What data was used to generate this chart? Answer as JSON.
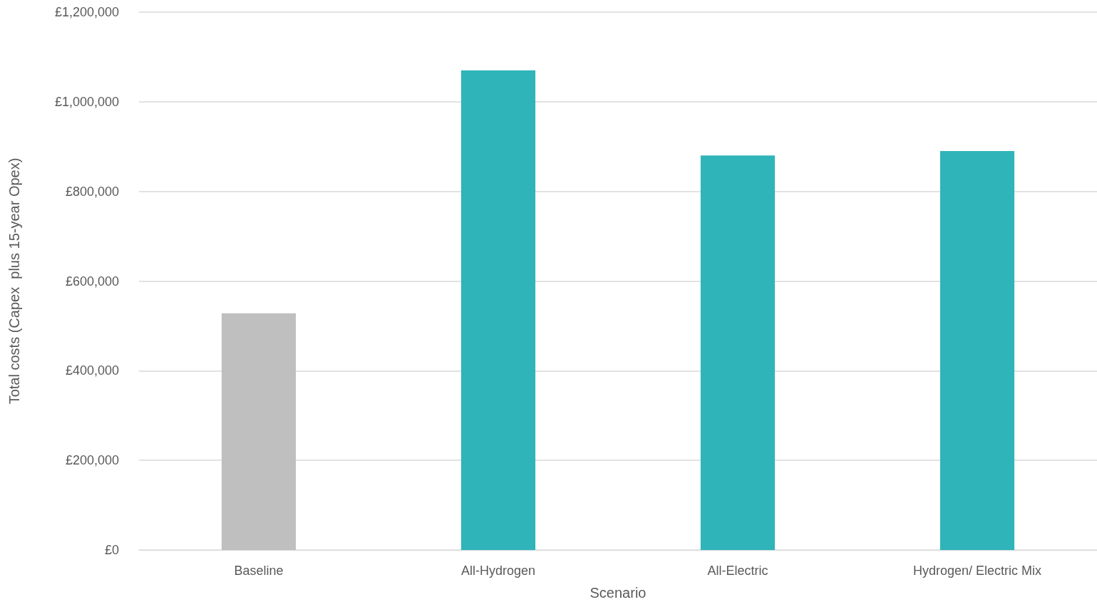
{
  "chart_data": {
    "type": "bar",
    "xlabel": "Scenario",
    "ylabel": "Total costs (Capex  plus 15-year Opex)",
    "categories": [
      "Baseline",
      "All-Hydrogen",
      "All-Electric",
      "Hydrogen/ Electric Mix"
    ],
    "values": [
      528000,
      1070000,
      880000,
      890000
    ],
    "colors": [
      "#bfbfbf",
      "#2fb4ba",
      "#2fb4ba",
      "#2fb4ba"
    ],
    "ylim": [
      0,
      1200000
    ],
    "yticks": [
      {
        "value": 0,
        "label": "£0"
      },
      {
        "value": 200000,
        "label": "£200,000"
      },
      {
        "value": 400000,
        "label": "£400,000"
      },
      {
        "value": 600000,
        "label": "£600,000"
      },
      {
        "value": 800000,
        "label": "£800,000"
      },
      {
        "value": 1000000,
        "label": "£1,000,000"
      },
      {
        "value": 1200000,
        "label": "£1,200,000"
      }
    ],
    "grid": "y"
  }
}
